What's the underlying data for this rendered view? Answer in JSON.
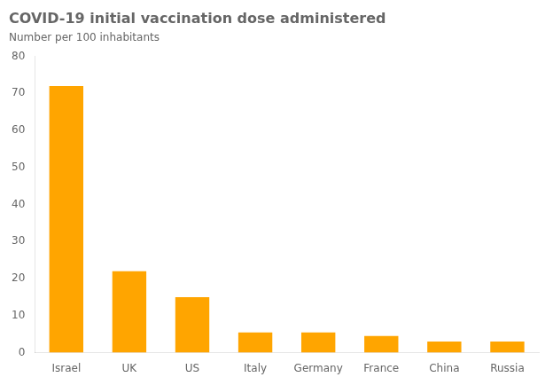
{
  "chart_data": {
    "type": "bar",
    "title": "COVID-19 initial vaccination dose administered",
    "subtitle": "Number per 100 inhabitants",
    "categories": [
      "Israel",
      "UK",
      "US",
      "Italy",
      "Germany",
      "France",
      "China",
      "Russia"
    ],
    "values": [
      72,
      22,
      15,
      5.5,
      5.5,
      4.5,
      3,
      3
    ],
    "color": "#FFA500",
    "ylim": [
      0,
      80
    ],
    "yticks": [
      0,
      10,
      20,
      30,
      40,
      50,
      60,
      70,
      80
    ],
    "grid": false
  }
}
